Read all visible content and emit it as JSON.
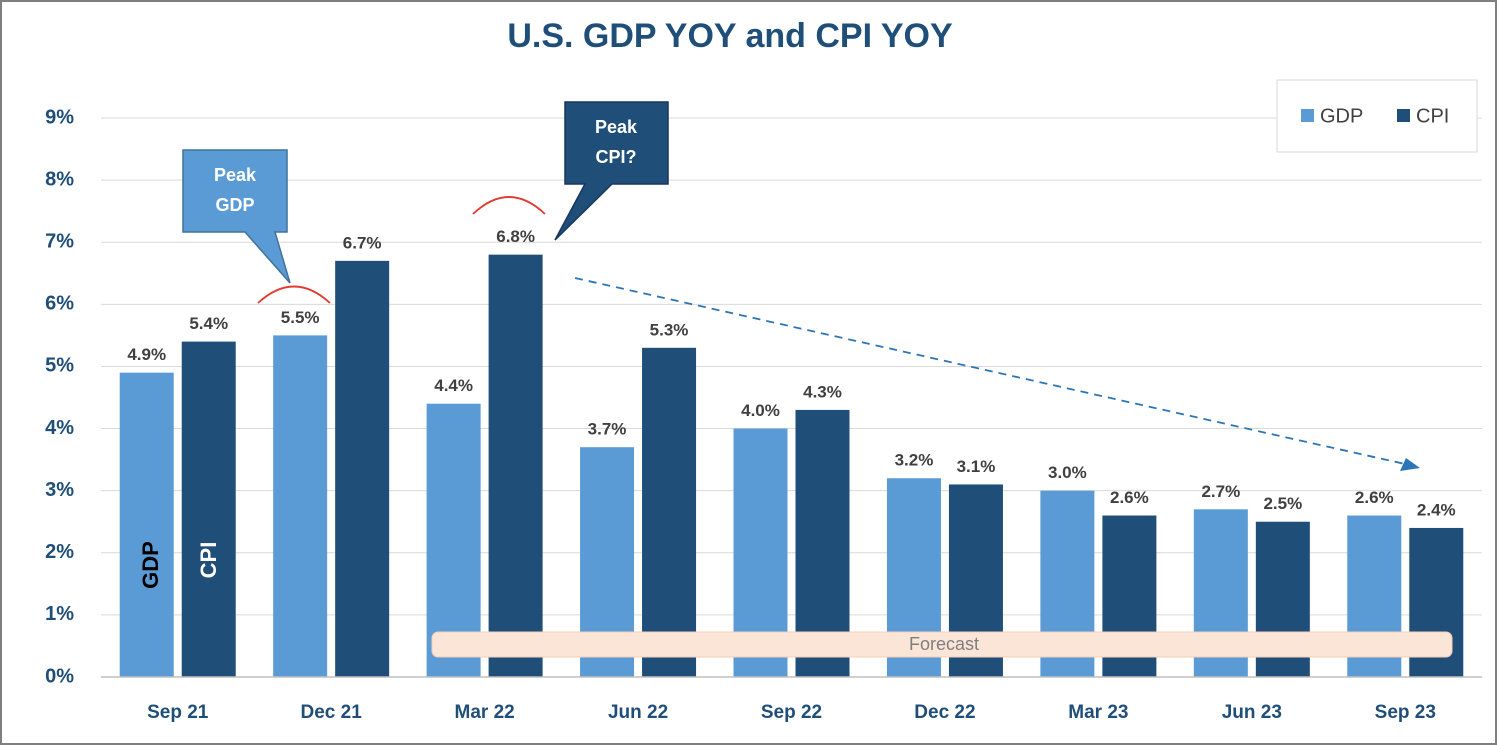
{
  "chart_data": {
    "type": "bar",
    "title": "U.S. GDP YOY and CPI YOY",
    "categories": [
      "Sep 21",
      "Dec 21",
      "Mar 22",
      "Jun 22",
      "Sep 22",
      "Dec 22",
      "Mar 23",
      "Jun 23",
      "Sep 23"
    ],
    "series": [
      {
        "name": "GDP",
        "color": "#5b9bd5",
        "values": [
          4.9,
          5.5,
          4.4,
          3.7,
          4.0,
          3.2,
          3.0,
          2.7,
          2.6
        ],
        "value_labels": [
          "4.9%",
          "5.5%",
          "4.4%",
          "3.7%",
          "4.0%",
          "3.2%",
          "3.0%",
          "2.7%",
          "2.6%"
        ]
      },
      {
        "name": "CPI",
        "color": "#1f4e79",
        "values": [
          5.4,
          6.7,
          6.8,
          5.3,
          4.3,
          3.1,
          2.6,
          2.5,
          2.4
        ],
        "value_labels": [
          "5.4%",
          "6.7%",
          "6.8%",
          "5.3%",
          "4.3%",
          "3.1%",
          "2.6%",
          "2.5%",
          "2.4%"
        ]
      }
    ],
    "ylim": [
      0,
      9
    ],
    "yticks": [
      {
        "value": 0,
        "label": "0%"
      },
      {
        "value": 1,
        "label": "1%"
      },
      {
        "value": 2,
        "label": "2%"
      },
      {
        "value": 3,
        "label": "3%"
      },
      {
        "value": 4,
        "label": "4%"
      },
      {
        "value": 5,
        "label": "5%"
      },
      {
        "value": 6,
        "label": "6%"
      },
      {
        "value": 7,
        "label": "7%"
      },
      {
        "value": 8,
        "label": "8%"
      },
      {
        "value": 9,
        "label": "9%"
      }
    ],
    "grid": true,
    "legend": "upper right",
    "peak_gdp_note": [
      "Peak",
      "GDP"
    ],
    "peak_cpi_note": [
      "Peak",
      "CPI?"
    ],
    "gdp_bar_note": "GDP",
    "cpi_bar_note": "CPI",
    "forecast_note": "Forecast"
  }
}
